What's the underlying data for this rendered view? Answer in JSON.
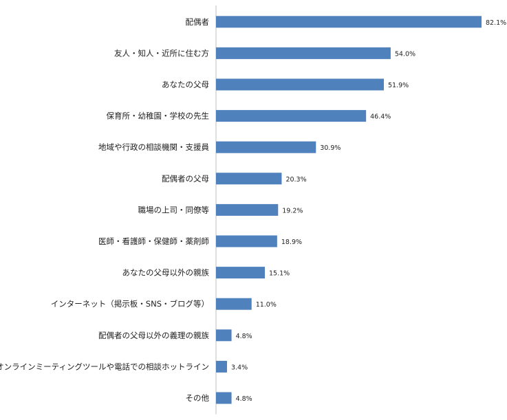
{
  "chart_data": {
    "type": "bar",
    "orientation": "horizontal",
    "categories": [
      "配偶者",
      "友人・知人・近所に住む方",
      "あなたの父母",
      "保育所・幼稚園・学校の先生",
      "地域や行政の相談機関・支援員",
      "配偶者の父母",
      "職場の上司・同僚等",
      "医師・看護師・保健師・薬剤師",
      "あなたの父母以外の親族",
      "インターネット（掲示板・SNS・ブログ等）",
      "配偶者の父母以外の義理の親族",
      "オンラインミーティングツールや電話での相談ホットライン",
      "その他"
    ],
    "values": [
      82.1,
      54.0,
      51.9,
      46.4,
      30.9,
      20.3,
      19.2,
      18.9,
      15.1,
      11.0,
      4.8,
      3.4,
      4.8
    ],
    "value_labels": [
      "82.1%",
      "54.0%",
      "51.9%",
      "46.4%",
      "30.9%",
      "20.3%",
      "19.2%",
      "18.9%",
      "15.1%",
      "11.0%",
      "4.8%",
      "3.4%",
      "4.8%"
    ],
    "xlim": [
      0,
      100
    ],
    "grid": false,
    "legend": "none",
    "colors": {
      "bar": "#4F81BD",
      "axis": "#BFBFBF",
      "text": "#222222"
    }
  }
}
